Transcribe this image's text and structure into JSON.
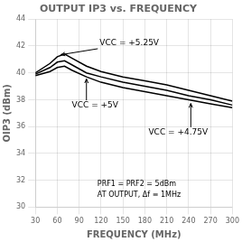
{
  "chart_data": {
    "type": "line",
    "title": "OUTPUT IP3 vs. FREQUENCY",
    "x_label": "FREQUENCY (MHz)",
    "y_label": "OIP3 (dBm)",
    "x": [
      30,
      50,
      60,
      70,
      80,
      100,
      120,
      150,
      180,
      210,
      240,
      270,
      300
    ],
    "series": [
      {
        "color": "#000000",
        "values": [
          40.0,
          40.7,
          41.2,
          41.4,
          41.1,
          40.5,
          40.1,
          39.7,
          39.4,
          39.1,
          38.7,
          38.3,
          37.9
        ]
      },
      {
        "color": "#000000",
        "values": [
          39.9,
          40.4,
          40.8,
          40.9,
          40.6,
          40.0,
          39.7,
          39.3,
          39.0,
          38.7,
          38.3,
          38.0,
          37.6
        ]
      },
      {
        "color": "#000000",
        "values": [
          39.8,
          40.1,
          40.4,
          40.5,
          40.2,
          39.7,
          39.3,
          38.9,
          38.6,
          38.3,
          38.0,
          37.7,
          37.4
        ]
      }
    ],
    "xlim": [
      30,
      300
    ],
    "ylim": [
      30,
      44
    ],
    "xticks": [
      30,
      60,
      90,
      120,
      150,
      180,
      210,
      240,
      270,
      300
    ],
    "yticks": [
      30,
      32,
      34,
      36,
      38,
      40,
      42,
      44
    ],
    "grid": true,
    "annotations": [
      {
        "text": "VCC = +5.25V",
        "x": 65,
        "y": 41.35,
        "text_x": 118,
        "text_y": 42.2
      },
      {
        "text": "VCC = +5V",
        "x": 100,
        "y": 39.55,
        "text_x": 80,
        "text_y": 37.55
      },
      {
        "text": "VCC = +4.75V",
        "x": 243,
        "y": 37.72,
        "text_x": 185,
        "text_y": 35.55
      }
    ],
    "notes": [
      {
        "text": "PRF1 = PRF2 = 5dBm",
        "x": 115,
        "y": 31.7
      },
      {
        "text": "AT OUTPUT, Δf ≡ 1MHz",
        "x": 115,
        "y": 30.9
      }
    ]
  }
}
